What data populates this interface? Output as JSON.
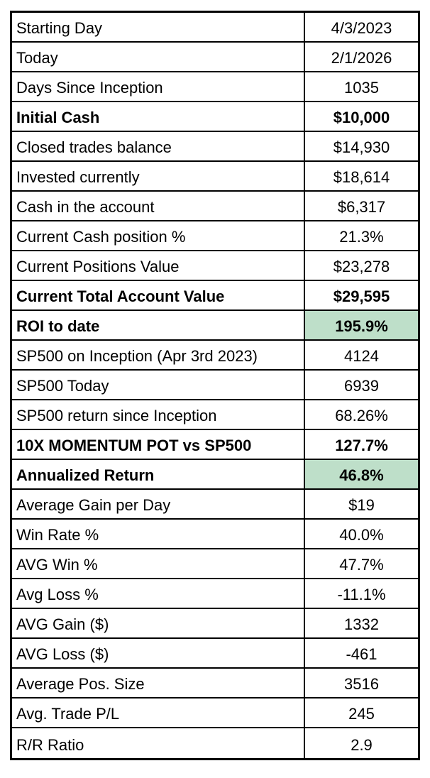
{
  "table": {
    "rows": [
      {
        "label": "Starting Day",
        "value": "4/3/2023",
        "bold": false,
        "highlight": false
      },
      {
        "label": "Today",
        "value": "2/1/2026",
        "bold": false,
        "highlight": false
      },
      {
        "label": "Days Since Inception",
        "value": "1035",
        "bold": false,
        "highlight": false
      },
      {
        "label": "Initial Cash",
        "value": "$10,000",
        "bold": true,
        "highlight": false
      },
      {
        "label": "Closed trades balance",
        "value": "$14,930",
        "bold": false,
        "highlight": false
      },
      {
        "label": "Invested currently",
        "value": "$18,614",
        "bold": false,
        "highlight": false
      },
      {
        "label": "Cash in the account",
        "value": "$6,317",
        "bold": false,
        "highlight": false
      },
      {
        "label": "Current Cash position %",
        "value": "21.3%",
        "bold": false,
        "highlight": false
      },
      {
        "label": "Current Positions Value",
        "value": "$23,278",
        "bold": false,
        "highlight": false
      },
      {
        "label": "Current Total Account Value",
        "value": "$29,595",
        "bold": true,
        "highlight": false
      },
      {
        "label": "ROI to date",
        "value": "195.9%",
        "bold": true,
        "highlight": true
      },
      {
        "label": "SP500 on Inception (Apr 3rd 2023)",
        "value": "4124",
        "bold": false,
        "highlight": false
      },
      {
        "label": "SP500 Today",
        "value": "6939",
        "bold": false,
        "highlight": false
      },
      {
        "label": "SP500 return since Inception",
        "value": "68.26%",
        "bold": false,
        "highlight": false
      },
      {
        "label": "10X MOMENTUM POT vs SP500",
        "value": "127.7%",
        "bold": true,
        "highlight": false
      },
      {
        "label": "Annualized Return",
        "value": "46.8%",
        "bold": true,
        "highlight": true
      },
      {
        "label": "Average Gain per Day",
        "value": "$19",
        "bold": false,
        "highlight": false
      },
      {
        "label": "Win Rate %",
        "value": "40.0%",
        "bold": false,
        "highlight": false
      },
      {
        "label": "AVG Win %",
        "value": "47.7%",
        "bold": false,
        "highlight": false
      },
      {
        "label": "Avg Loss %",
        "value": "-11.1%",
        "bold": false,
        "highlight": false
      },
      {
        "label": "AVG Gain ($)",
        "value": "1332",
        "bold": false,
        "highlight": false
      },
      {
        "label": "AVG Loss ($)",
        "value": "-461",
        "bold": false,
        "highlight": false
      },
      {
        "label": "Average Pos. Size",
        "value": "3516",
        "bold": false,
        "highlight": false
      },
      {
        "label": "Avg. Trade P/L",
        "value": "245",
        "bold": false,
        "highlight": false
      },
      {
        "label": "R/R Ratio",
        "value": "2.9",
        "bold": false,
        "highlight": false
      }
    ]
  },
  "colors": {
    "highlight_green": "#bedfc9",
    "border": "#000000",
    "background": "#ffffff",
    "text": "#000000"
  }
}
